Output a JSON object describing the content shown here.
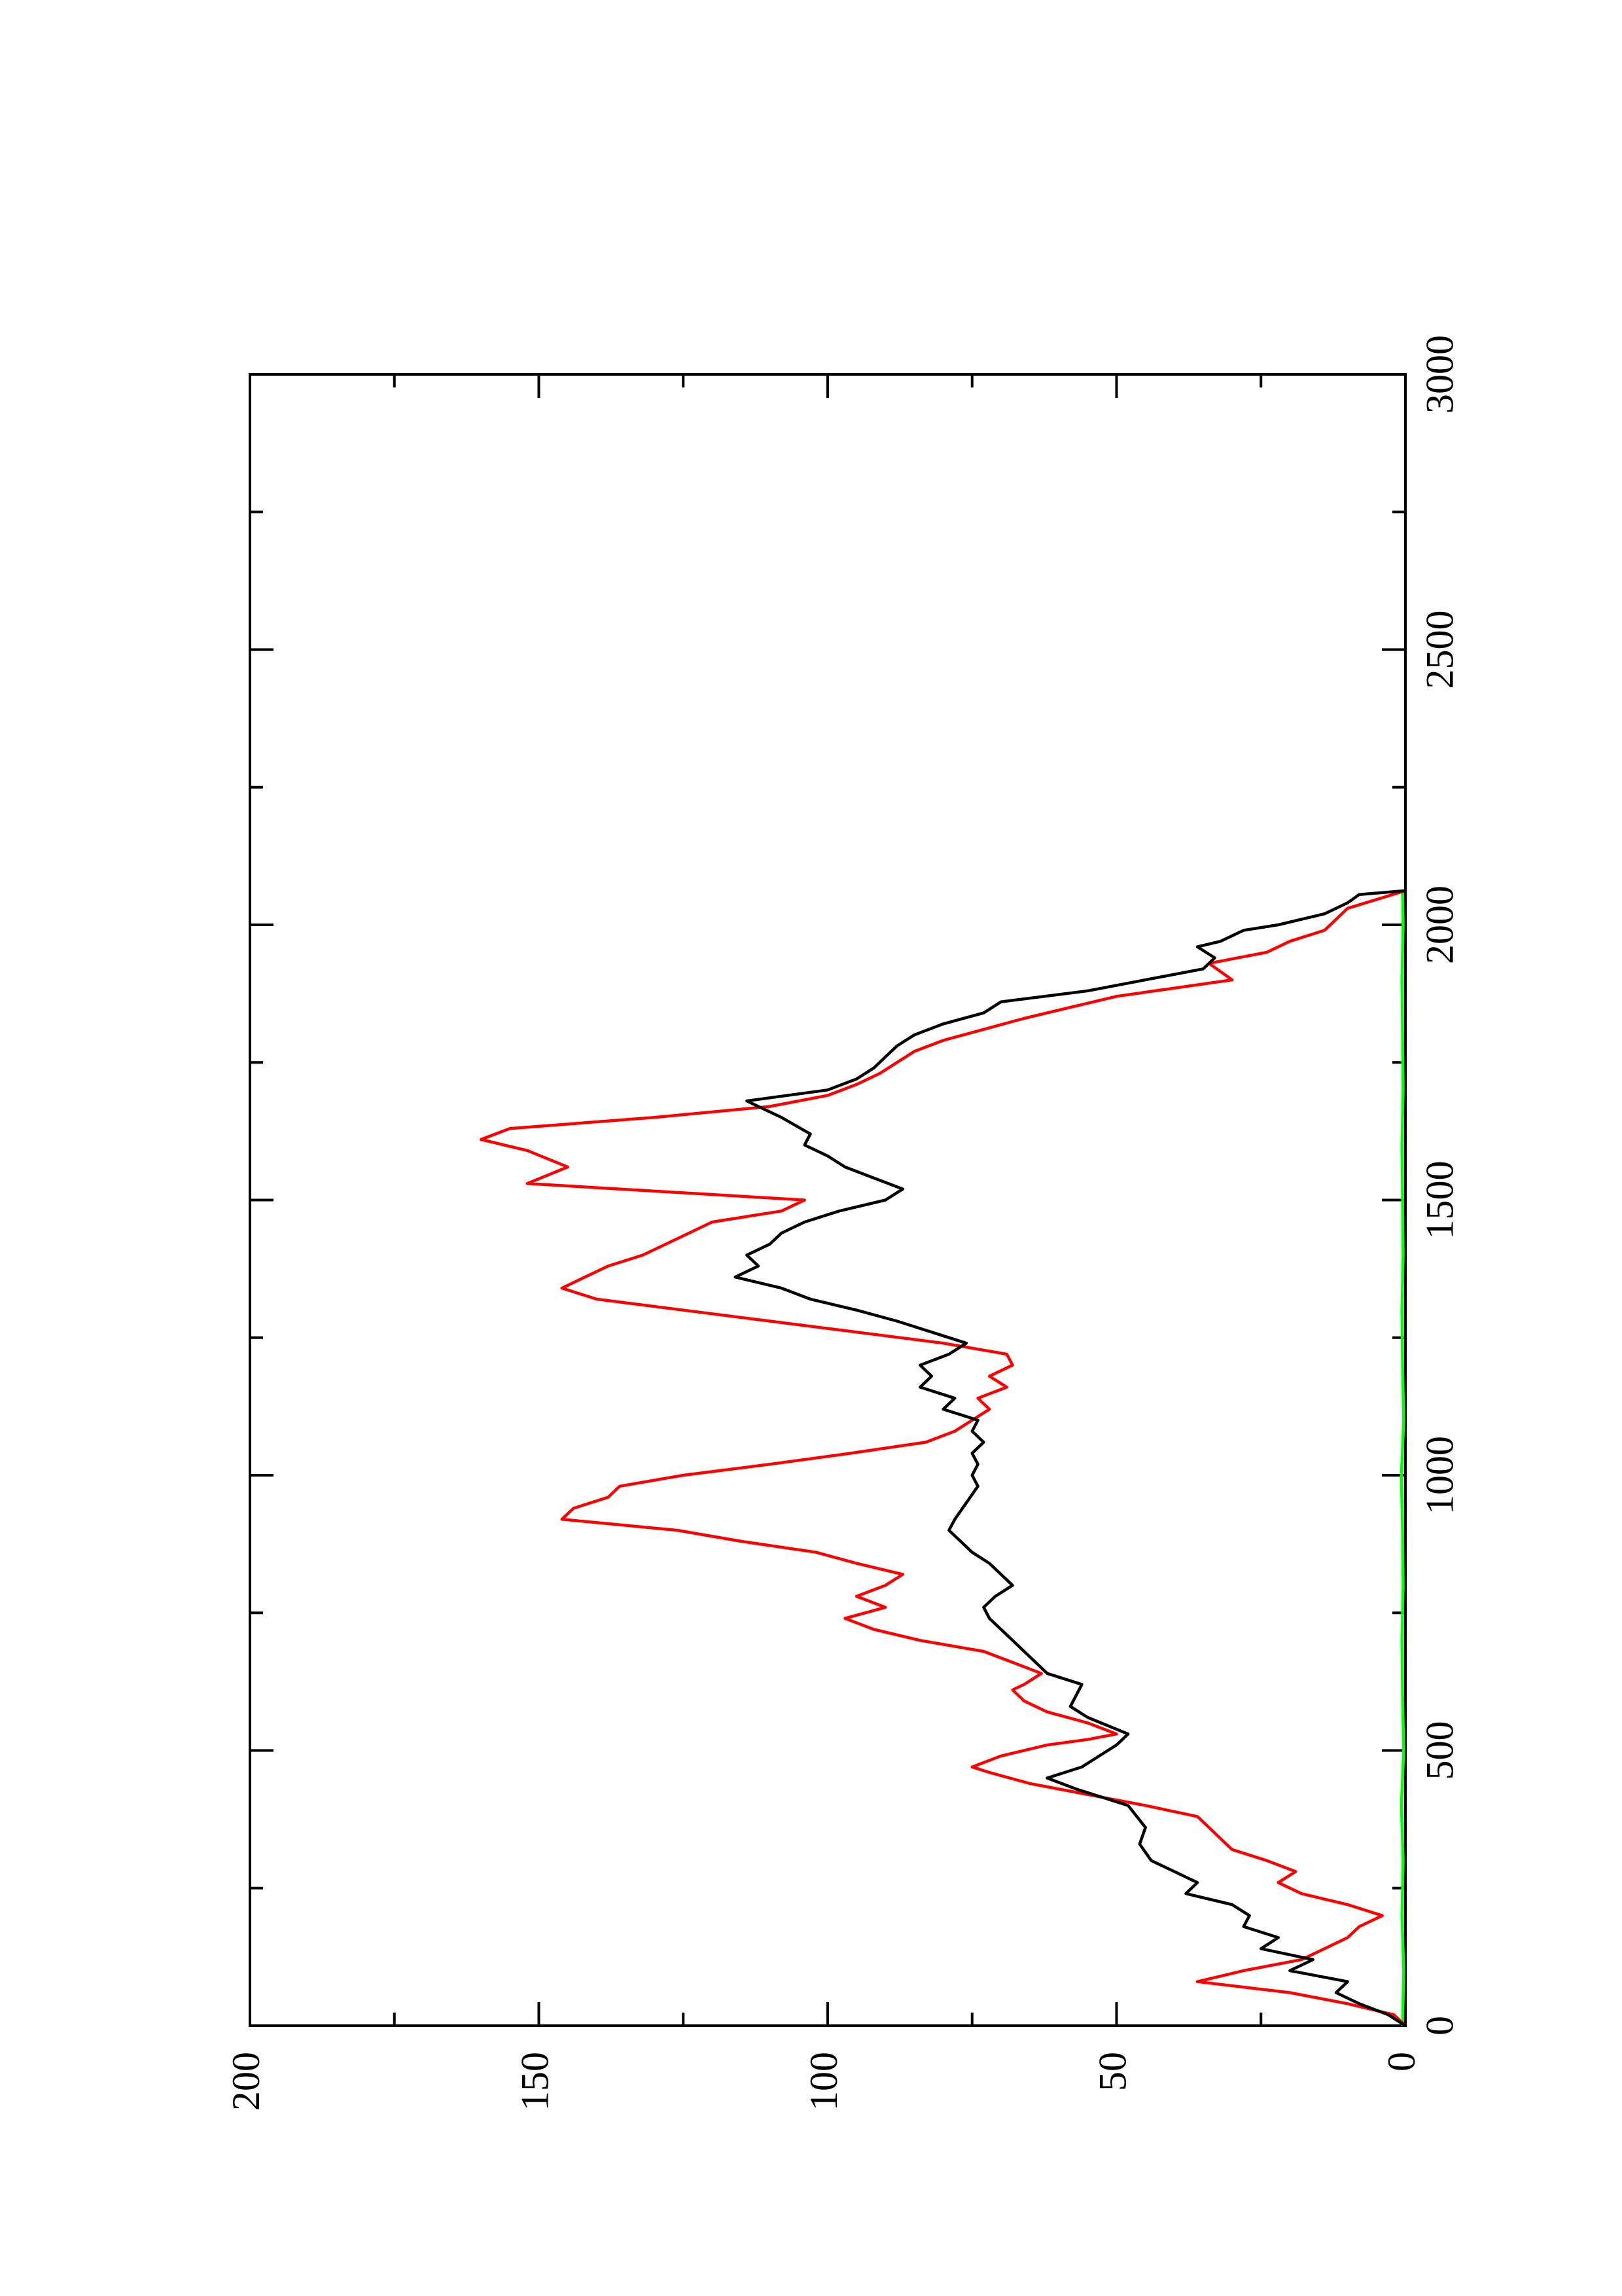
{
  "chart_data": {
    "type": "line",
    "title": "",
    "xlabel": "",
    "ylabel": "",
    "xlim": [
      0,
      3000
    ],
    "ylim": [
      0,
      200
    ],
    "x_ticks_major": [
      0,
      500,
      1000,
      1500,
      2000,
      2500,
      3000
    ],
    "x_ticks_minor": [
      250,
      750,
      1250,
      1750,
      2250,
      2750
    ],
    "y_ticks_major": [
      0,
      50,
      100,
      150,
      200
    ],
    "y_ticks_minor": [
      25,
      75,
      125,
      175
    ],
    "x_tick_labels": [
      "0",
      "500",
      "1000",
      "1500",
      "2000",
      "2500",
      "3000"
    ],
    "y_tick_labels": [
      "0",
      "50",
      "100",
      "150",
      "200"
    ],
    "orientation": "rotated 90 degrees counterclockwise",
    "grid": false,
    "legend": "none",
    "series": [
      {
        "color": "#000000",
        "points": [
          [
            0,
            0
          ],
          [
            20,
            3
          ],
          [
            40,
            8
          ],
          [
            60,
            12
          ],
          [
            80,
            10
          ],
          [
            100,
            20
          ],
          [
            120,
            16
          ],
          [
            140,
            25
          ],
          [
            160,
            22
          ],
          [
            180,
            28
          ],
          [
            200,
            27
          ],
          [
            220,
            30
          ],
          [
            240,
            38
          ],
          [
            260,
            36
          ],
          [
            280,
            40
          ],
          [
            300,
            44
          ],
          [
            330,
            46
          ],
          [
            360,
            45
          ],
          [
            400,
            48
          ],
          [
            430,
            57
          ],
          [
            450,
            62
          ],
          [
            470,
            56
          ],
          [
            490,
            53
          ],
          [
            510,
            50
          ],
          [
            530,
            48
          ],
          [
            560,
            55
          ],
          [
            580,
            58
          ],
          [
            600,
            57
          ],
          [
            620,
            56
          ],
          [
            640,
            62
          ],
          [
            660,
            64
          ],
          [
            680,
            66
          ],
          [
            700,
            68
          ],
          [
            720,
            70
          ],
          [
            740,
            72
          ],
          [
            760,
            73
          ],
          [
            780,
            71
          ],
          [
            800,
            68
          ],
          [
            820,
            70
          ],
          [
            840,
            72
          ],
          [
            860,
            75
          ],
          [
            880,
            77
          ],
          [
            900,
            79
          ],
          [
            920,
            78
          ],
          [
            950,
            76
          ],
          [
            980,
            74
          ],
          [
            1000,
            75
          ],
          [
            1020,
            74
          ],
          [
            1040,
            75
          ],
          [
            1060,
            73
          ],
          [
            1080,
            75
          ],
          [
            1100,
            74
          ],
          [
            1120,
            80
          ],
          [
            1140,
            78
          ],
          [
            1160,
            84
          ],
          [
            1180,
            82
          ],
          [
            1200,
            84
          ],
          [
            1220,
            79
          ],
          [
            1240,
            76
          ],
          [
            1260,
            82
          ],
          [
            1280,
            88
          ],
          [
            1300,
            95
          ],
          [
            1320,
            103
          ],
          [
            1340,
            108
          ],
          [
            1360,
            116
          ],
          [
            1380,
            112
          ],
          [
            1400,
            114
          ],
          [
            1420,
            110
          ],
          [
            1440,
            108
          ],
          [
            1460,
            104
          ],
          [
            1480,
            98
          ],
          [
            1500,
            90
          ],
          [
            1520,
            87
          ],
          [
            1540,
            92
          ],
          [
            1560,
            97
          ],
          [
            1580,
            100
          ],
          [
            1600,
            104
          ],
          [
            1620,
            103
          ],
          [
            1650,
            108
          ],
          [
            1670,
            112
          ],
          [
            1680,
            114
          ],
          [
            1700,
            100
          ],
          [
            1720,
            95
          ],
          [
            1740,
            92
          ],
          [
            1760,
            90
          ],
          [
            1780,
            88
          ],
          [
            1800,
            85
          ],
          [
            1820,
            80
          ],
          [
            1840,
            73
          ],
          [
            1860,
            70
          ],
          [
            1880,
            55
          ],
          [
            1900,
            45
          ],
          [
            1920,
            35
          ],
          [
            1940,
            33
          ],
          [
            1960,
            36
          ],
          [
            1970,
            32
          ],
          [
            1990,
            28
          ],
          [
            2000,
            22
          ],
          [
            2020,
            14
          ],
          [
            2040,
            10
          ],
          [
            2055,
            8
          ],
          [
            2062,
            0
          ]
        ]
      },
      {
        "color": "#ff0000",
        "points": [
          [
            0,
            0
          ],
          [
            20,
            2
          ],
          [
            40,
            10
          ],
          [
            60,
            20
          ],
          [
            80,
            36
          ],
          [
            100,
            28
          ],
          [
            120,
            18
          ],
          [
            140,
            14
          ],
          [
            160,
            10
          ],
          [
            180,
            8
          ],
          [
            200,
            4
          ],
          [
            220,
            10
          ],
          [
            240,
            18
          ],
          [
            260,
            22
          ],
          [
            280,
            19
          ],
          [
            300,
            24
          ],
          [
            320,
            30
          ],
          [
            340,
            32
          ],
          [
            360,
            34
          ],
          [
            380,
            36
          ],
          [
            400,
            45
          ],
          [
            420,
            55
          ],
          [
            440,
            65
          ],
          [
            460,
            72
          ],
          [
            470,
            75
          ],
          [
            490,
            70
          ],
          [
            510,
            62
          ],
          [
            520,
            55
          ],
          [
            530,
            50
          ],
          [
            550,
            55
          ],
          [
            570,
            62
          ],
          [
            590,
            66
          ],
          [
            610,
            68
          ],
          [
            620,
            66
          ],
          [
            640,
            63
          ],
          [
            660,
            68
          ],
          [
            680,
            73
          ],
          [
            700,
            84
          ],
          [
            720,
            92
          ],
          [
            740,
            97
          ],
          [
            760,
            90
          ],
          [
            780,
            95
          ],
          [
            800,
            90
          ],
          [
            820,
            87
          ],
          [
            840,
            95
          ],
          [
            860,
            102
          ],
          [
            880,
            115
          ],
          [
            900,
            126
          ],
          [
            920,
            146
          ],
          [
            940,
            144
          ],
          [
            960,
            138
          ],
          [
            980,
            136
          ],
          [
            1000,
            125
          ],
          [
            1020,
            110
          ],
          [
            1040,
            96
          ],
          [
            1060,
            83
          ],
          [
            1080,
            78
          ],
          [
            1100,
            75
          ],
          [
            1120,
            72
          ],
          [
            1140,
            74
          ],
          [
            1160,
            69
          ],
          [
            1180,
            72
          ],
          [
            1200,
            68
          ],
          [
            1220,
            69
          ],
          [
            1240,
            80
          ],
          [
            1260,
            95
          ],
          [
            1280,
            110
          ],
          [
            1300,
            125
          ],
          [
            1320,
            140
          ],
          [
            1340,
            146
          ],
          [
            1360,
            142
          ],
          [
            1380,
            138
          ],
          [
            1400,
            132
          ],
          [
            1420,
            128
          ],
          [
            1440,
            124
          ],
          [
            1460,
            120
          ],
          [
            1480,
            108
          ],
          [
            1500,
            104
          ],
          [
            1530,
            152
          ],
          [
            1560,
            145
          ],
          [
            1590,
            152
          ],
          [
            1610,
            160
          ],
          [
            1630,
            155
          ],
          [
            1650,
            130
          ],
          [
            1670,
            110
          ],
          [
            1690,
            100
          ],
          [
            1710,
            95
          ],
          [
            1730,
            91
          ],
          [
            1750,
            88
          ],
          [
            1770,
            85
          ],
          [
            1790,
            80
          ],
          [
            1810,
            73
          ],
          [
            1830,
            66
          ],
          [
            1850,
            58
          ],
          [
            1870,
            50
          ],
          [
            1900,
            30
          ],
          [
            1930,
            34
          ],
          [
            1950,
            24
          ],
          [
            1970,
            20
          ],
          [
            1990,
            14
          ],
          [
            2010,
            12
          ],
          [
            2030,
            10
          ],
          [
            2062,
            0
          ]
        ]
      },
      {
        "color": "#00ff00",
        "points": [
          [
            0,
            0.5
          ],
          [
            100,
            0.3
          ],
          [
            200,
            0.6
          ],
          [
            300,
            0.4
          ],
          [
            400,
            0.7
          ],
          [
            500,
            0.3
          ],
          [
            600,
            0.5
          ],
          [
            700,
            0.6
          ],
          [
            800,
            0.4
          ],
          [
            900,
            0.5
          ],
          [
            1000,
            0.7
          ],
          [
            1100,
            0.3
          ],
          [
            1200,
            0.5
          ],
          [
            1300,
            0.6
          ],
          [
            1400,
            0.4
          ],
          [
            1500,
            0.5
          ],
          [
            1600,
            0.6
          ],
          [
            1700,
            0.4
          ],
          [
            1800,
            0.5
          ],
          [
            1900,
            0.6
          ],
          [
            2000,
            0.4
          ],
          [
            2062,
            0.5
          ]
        ]
      }
    ]
  }
}
